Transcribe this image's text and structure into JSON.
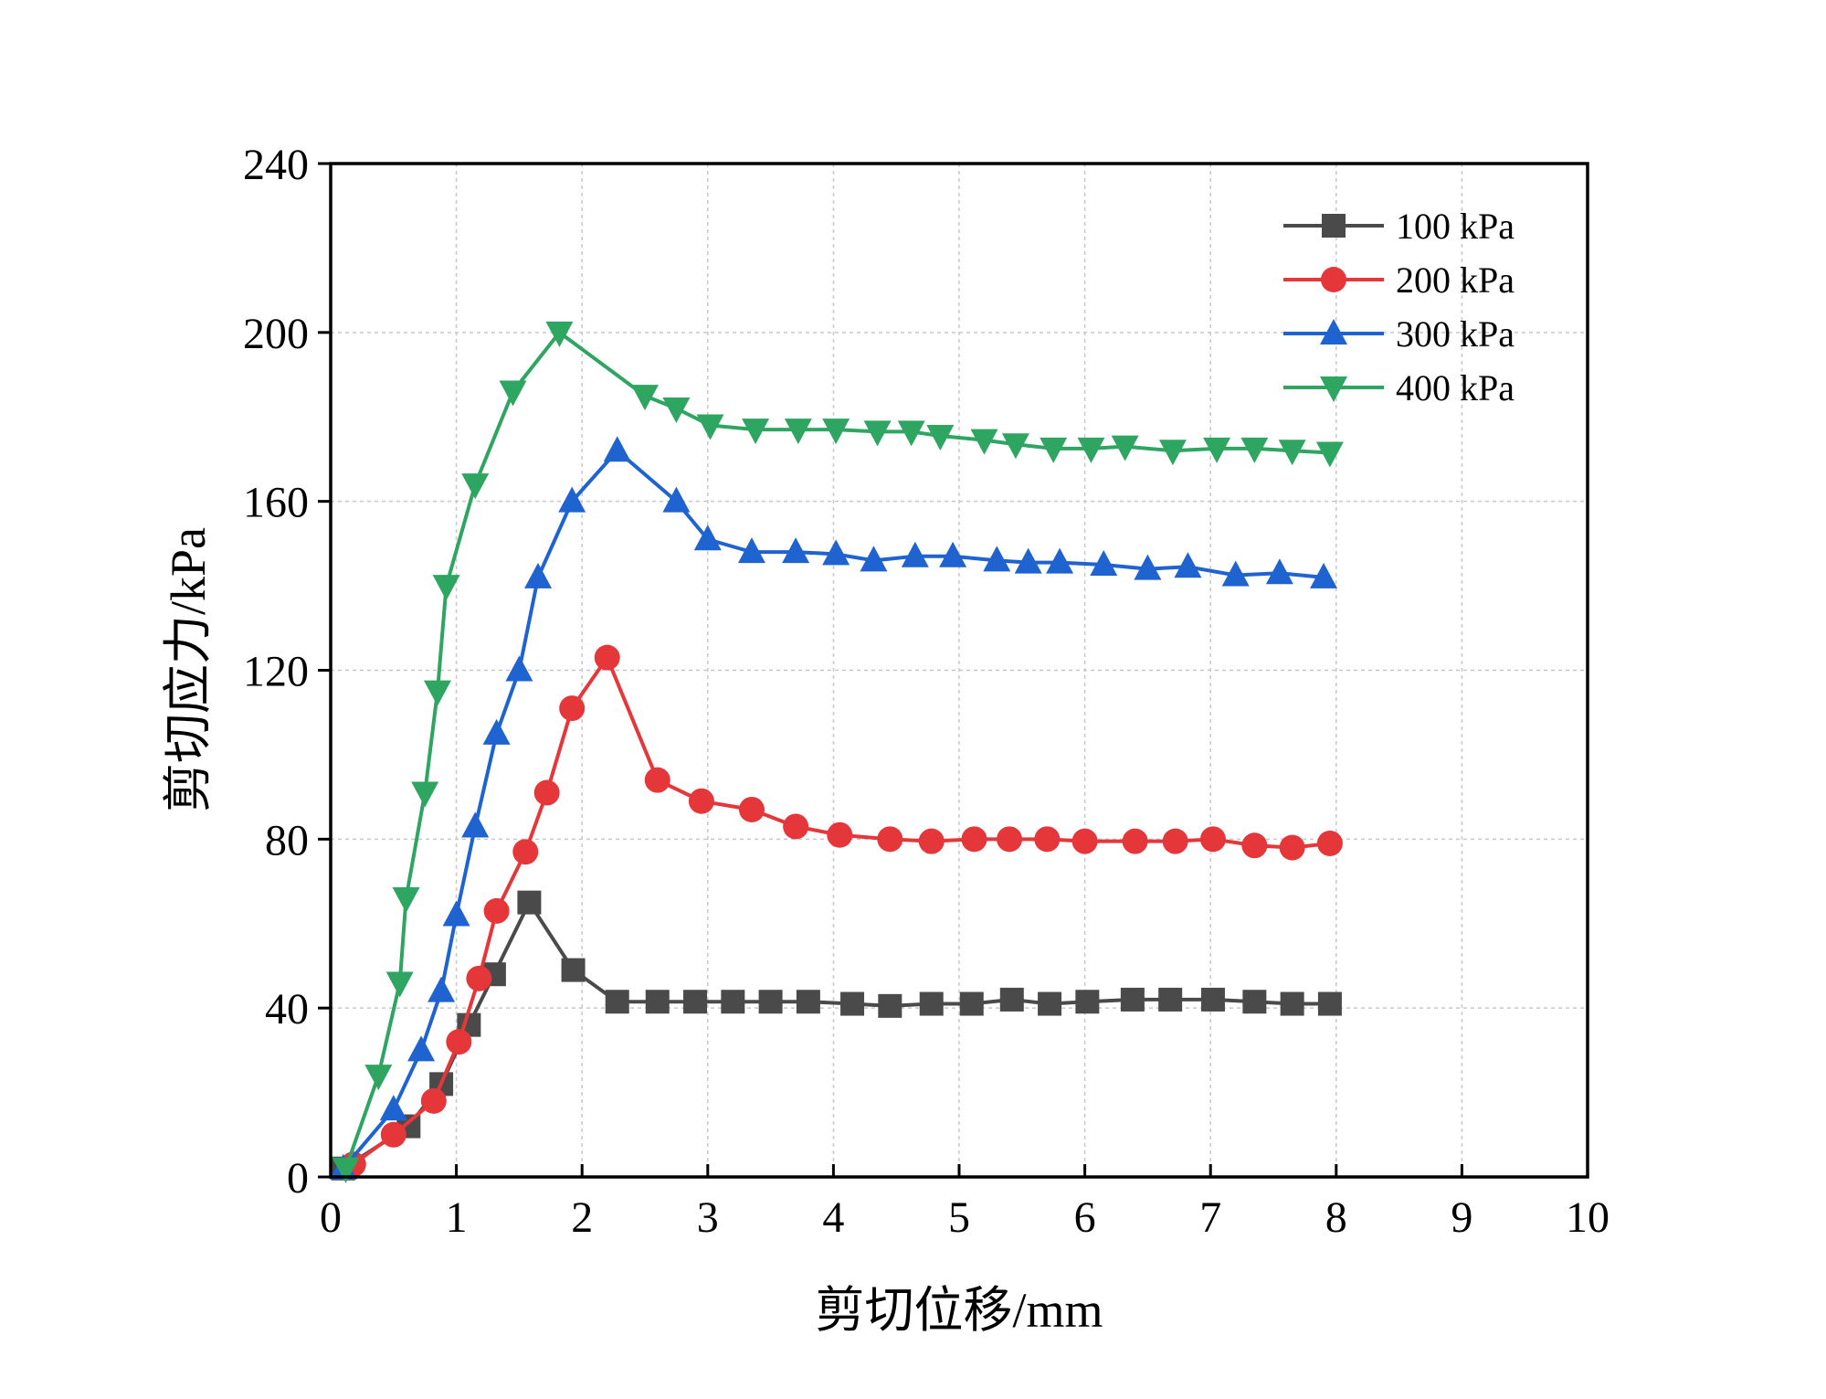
{
  "chart_data": {
    "type": "line",
    "title": "",
    "xlabel": "剪切位移/mm",
    "ylabel": "剪切应力/kPa",
    "xlim": [
      0,
      10
    ],
    "ylim": [
      0,
      240
    ],
    "xticks": [
      0,
      1,
      2,
      3,
      4,
      5,
      6,
      7,
      8,
      9,
      10
    ],
    "yticks": [
      0,
      40,
      80,
      120,
      160,
      200,
      240
    ],
    "grid": true,
    "legend_position": "top-right",
    "series": [
      {
        "name": "100 kPa",
        "color": "#4a4a4a",
        "marker": "square",
        "x": [
          0.1,
          0.62,
          0.88,
          1.1,
          1.3,
          1.58,
          1.93,
          2.28,
          2.6,
          2.9,
          3.2,
          3.5,
          3.8,
          4.15,
          4.45,
          4.78,
          5.1,
          5.42,
          5.72,
          6.02,
          6.38,
          6.68,
          7.02,
          7.35,
          7.65,
          7.95
        ],
        "y": [
          2,
          12,
          22,
          36,
          48,
          65,
          49,
          41.5,
          41.5,
          41.5,
          41.5,
          41.5,
          41.5,
          41,
          40.5,
          41,
          41,
          42,
          41,
          41.5,
          42,
          42,
          42,
          41.5,
          41,
          41
        ]
      },
      {
        "name": "200 kPa",
        "color": "#e5373a",
        "marker": "circle",
        "x": [
          0.18,
          0.5,
          0.82,
          1.02,
          1.18,
          1.32,
          1.55,
          1.72,
          1.92,
          2.2,
          2.6,
          2.95,
          3.35,
          3.7,
          4.05,
          4.45,
          4.78,
          5.12,
          5.4,
          5.7,
          6.0,
          6.4,
          6.72,
          7.02,
          7.35,
          7.65,
          7.95
        ],
        "y": [
          3,
          10,
          18,
          32,
          47,
          63,
          77,
          91,
          111,
          123,
          94,
          89,
          87,
          83,
          81,
          80,
          79.5,
          80,
          80,
          80,
          79.5,
          79.5,
          79.5,
          80,
          78.5,
          78,
          79
        ]
      },
      {
        "name": "300 kPa",
        "color": "#1f63d1",
        "marker": "triangle-up",
        "x": [
          0.1,
          0.5,
          0.72,
          0.88,
          1.0,
          1.15,
          1.32,
          1.5,
          1.65,
          1.92,
          2.28,
          2.75,
          3.0,
          3.35,
          3.7,
          4.02,
          4.32,
          4.65,
          4.95,
          5.3,
          5.55,
          5.8,
          6.15,
          6.5,
          6.82,
          7.2,
          7.55,
          7.9
        ],
        "y": [
          2,
          16,
          30,
          44,
          62,
          83,
          105,
          120,
          142,
          160,
          172,
          160,
          151,
          148,
          148,
          147.5,
          146,
          147,
          147,
          146,
          145.5,
          145.5,
          145,
          144,
          144.5,
          142.5,
          143,
          142
        ]
      },
      {
        "name": "400 kPa",
        "color": "#2ea560",
        "marker": "triangle-down",
        "x": [
          0.12,
          0.38,
          0.55,
          0.6,
          0.75,
          0.85,
          0.92,
          1.15,
          1.45,
          1.82,
          2.5,
          2.75,
          3.02,
          3.38,
          3.72,
          4.02,
          4.35,
          4.62,
          4.85,
          5.2,
          5.45,
          5.75,
          6.05,
          6.32,
          6.7,
          7.05,
          7.35,
          7.65,
          7.95
        ],
        "y": [
          2,
          24,
          46,
          66,
          91,
          115,
          140,
          164,
          186,
          200,
          185,
          182,
          178,
          177,
          177,
          177,
          176.5,
          176.5,
          175.5,
          174.5,
          173.5,
          172.5,
          172.5,
          173,
          172,
          172.5,
          172.5,
          172,
          171.5
        ]
      }
    ]
  }
}
